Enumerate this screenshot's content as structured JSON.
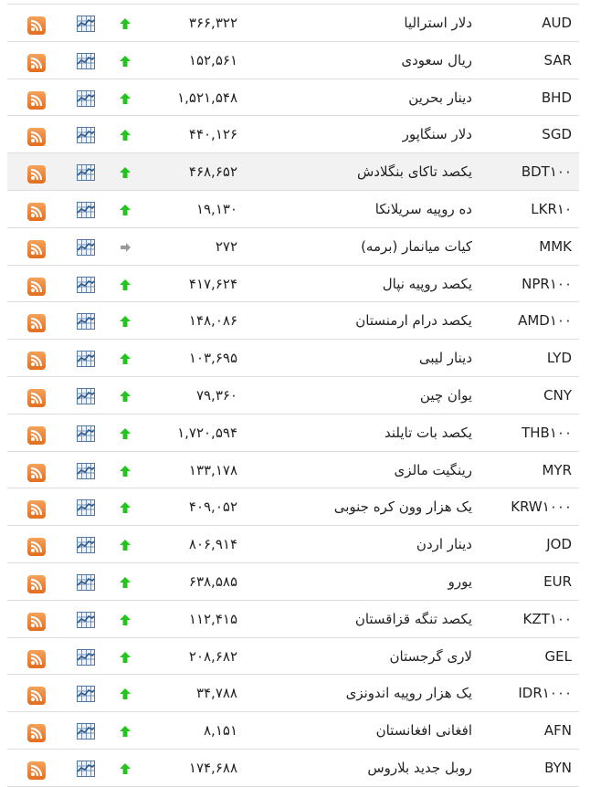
{
  "colors": {
    "up": "#22c41d",
    "flat": "#999999",
    "rss": "#ea7d2e",
    "chart": "#4f78a8",
    "highlight_row": "#f2f2f2"
  },
  "rows": [
    {
      "code": "AUD",
      "name": "دلار استرالیا",
      "value": "۳۶۶,۳۲۲",
      "trend": "up"
    },
    {
      "code": "SAR",
      "name": "ریال سعودی",
      "value": "۱۵۲,۵۶۱",
      "trend": "up"
    },
    {
      "code": "BHD",
      "name": "دینار بحرین",
      "value": "۱,۵۲۱,۵۴۸",
      "trend": "up"
    },
    {
      "code": "SGD",
      "name": "دلار سنگاپور",
      "value": "۴۴۰,۱۲۶",
      "trend": "up"
    },
    {
      "code": "BDT۱۰۰",
      "name": "یکصد تاکای بنگلادش",
      "value": "۴۶۸,۶۵۲",
      "trend": "up",
      "highlighted": true
    },
    {
      "code": "LKR۱۰",
      "name": "ده روپیه سریلانکا",
      "value": "۱۹,۱۳۰",
      "trend": "up"
    },
    {
      "code": "MMK",
      "name": "کیات میانمار (برمه)",
      "value": "۲۷۲",
      "trend": "flat"
    },
    {
      "code": "NPR۱۰۰",
      "name": "یکصد روپیه نپال",
      "value": "۴۱۷,۶۲۴",
      "trend": "up"
    },
    {
      "code": "AMD۱۰۰",
      "name": "یکصد درام ارمنستان",
      "value": "۱۴۸,۰۸۶",
      "trend": "up"
    },
    {
      "code": "LYD",
      "name": "دینار لیبی",
      "value": "۱۰۳,۶۹۵",
      "trend": "up"
    },
    {
      "code": "CNY",
      "name": "یوان چین",
      "value": "۷۹,۳۶۰",
      "trend": "up"
    },
    {
      "code": "THB۱۰۰",
      "name": "یکصد بات تایلند",
      "value": "۱,۷۲۰,۵۹۴",
      "trend": "up"
    },
    {
      "code": "MYR",
      "name": "رینگیت مالزی",
      "value": "۱۳۳,۱۷۸",
      "trend": "up"
    },
    {
      "code": "KRW۱۰۰۰",
      "name": "یک هزار وون کره جنوبی",
      "value": "۴۰۹,۰۵۲",
      "trend": "up"
    },
    {
      "code": "JOD",
      "name": "دینار اردن",
      "value": "۸۰۶,۹۱۴",
      "trend": "up"
    },
    {
      "code": "EUR",
      "name": "یورو",
      "value": "۶۳۸,۵۸۵",
      "trend": "up"
    },
    {
      "code": "KZT۱۰۰",
      "name": "یکصد تنگه قزاقستان",
      "value": "۱۱۲,۴۱۵",
      "trend": "up"
    },
    {
      "code": "GEL",
      "name": "لاری گرجستان",
      "value": "۲۰۸,۶۸۲",
      "trend": "up"
    },
    {
      "code": "IDR۱۰۰۰",
      "name": "یک هزار روپیه اندونزی",
      "value": "۳۴,۷۸۸",
      "trend": "up"
    },
    {
      "code": "AFN",
      "name": "افغانی افغانستان",
      "value": "۸,۱۵۱",
      "trend": "up"
    },
    {
      "code": "BYN",
      "name": "روبل جدید بلاروس",
      "value": "۱۷۴,۶۸۸",
      "trend": "up"
    }
  ]
}
